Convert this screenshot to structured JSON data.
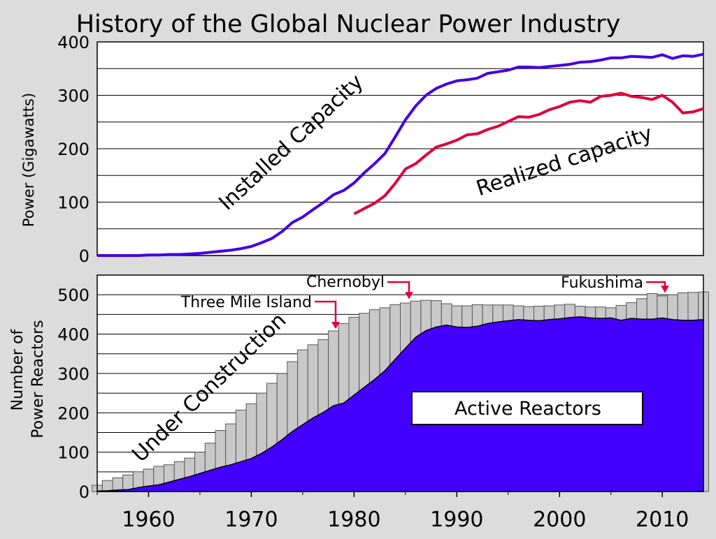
{
  "title": "History of the Global Nuclear Power Industry",
  "chart_data": [
    {
      "type": "line",
      "ylabel": "Power (Gigawatts)",
      "ylim": [
        0,
        400
      ],
      "yticks": [
        0,
        100,
        200,
        300,
        400
      ],
      "xlim": [
        1955,
        2014
      ],
      "grid": true,
      "series": [
        {
          "name": "Installed Capacity",
          "color": "#4400e0",
          "points": [
            [
              1955,
              0
            ],
            [
              1956,
              0
            ],
            [
              1957,
              0
            ],
            [
              1958,
              0
            ],
            [
              1959,
              0
            ],
            [
              1960,
              1
            ],
            [
              1961,
              1
            ],
            [
              1962,
              2
            ],
            [
              1963,
              2
            ],
            [
              1964,
              3
            ],
            [
              1965,
              4
            ],
            [
              1966,
              6
            ],
            [
              1967,
              8
            ],
            [
              1968,
              10
            ],
            [
              1969,
              13
            ],
            [
              1970,
              17
            ],
            [
              1971,
              24
            ],
            [
              1972,
              32
            ],
            [
              1973,
              45
            ],
            [
              1974,
              62
            ],
            [
              1975,
              72
            ],
            [
              1976,
              86
            ],
            [
              1977,
              99
            ],
            [
              1978,
              114
            ],
            [
              1979,
              122
            ],
            [
              1980,
              136
            ],
            [
              1981,
              155
            ],
            [
              1982,
              172
            ],
            [
              1983,
              191
            ],
            [
              1984,
              222
            ],
            [
              1985,
              254
            ],
            [
              1986,
              280
            ],
            [
              1987,
              300
            ],
            [
              1988,
              313
            ],
            [
              1989,
              321
            ],
            [
              1990,
              327
            ],
            [
              1991,
              329
            ],
            [
              1992,
              332
            ],
            [
              1993,
              341
            ],
            [
              1994,
              344
            ],
            [
              1995,
              347
            ],
            [
              1996,
              353
            ],
            [
              1997,
              353
            ],
            [
              1998,
              352
            ],
            [
              1999,
              354
            ],
            [
              2000,
              356
            ],
            [
              2001,
              358
            ],
            [
              2002,
              362
            ],
            [
              2003,
              363
            ],
            [
              2004,
              366
            ],
            [
              2005,
              370
            ],
            [
              2006,
              370
            ],
            [
              2007,
              373
            ],
            [
              2008,
              372
            ],
            [
              2009,
              371
            ],
            [
              2010,
              376
            ],
            [
              2011,
              369
            ],
            [
              2012,
              374
            ],
            [
              2013,
              373
            ],
            [
              2014,
              377
            ]
          ]
        },
        {
          "name": "Realized capacity",
          "color": "#e0003a",
          "points": [
            [
              1980,
              78
            ],
            [
              1981,
              88
            ],
            [
              1982,
              98
            ],
            [
              1983,
              112
            ],
            [
              1984,
              135
            ],
            [
              1985,
              162
            ],
            [
              1986,
              172
            ],
            [
              1987,
              188
            ],
            [
              1988,
              203
            ],
            [
              1989,
              209
            ],
            [
              1990,
              216
            ],
            [
              1991,
              226
            ],
            [
              1992,
              228
            ],
            [
              1993,
              236
            ],
            [
              1994,
              242
            ],
            [
              1995,
              251
            ],
            [
              1996,
              260
            ],
            [
              1997,
              259
            ],
            [
              1998,
              264
            ],
            [
              1999,
              273
            ],
            [
              2000,
              279
            ],
            [
              2001,
              287
            ],
            [
              2002,
              290
            ],
            [
              2003,
              287
            ],
            [
              2004,
              298
            ],
            [
              2005,
              300
            ],
            [
              2006,
              304
            ],
            [
              2007,
              298
            ],
            [
              2008,
              296
            ],
            [
              2009,
              292
            ],
            [
              2010,
              300
            ],
            [
              2011,
              287
            ],
            [
              2012,
              267
            ],
            [
              2013,
              269
            ],
            [
              2014,
              275
            ]
          ]
        }
      ]
    },
    {
      "type": "area",
      "ylabel": "Number of Power Reactors",
      "ylim": [
        0,
        550
      ],
      "yticks": [
        0,
        100,
        200,
        300,
        400,
        500
      ],
      "xlim": [
        1955,
        2014
      ],
      "xticks": [
        1960,
        1970,
        1980,
        1990,
        2000,
        2010
      ],
      "grid": true,
      "years": [
        1955,
        1956,
        1957,
        1958,
        1959,
        1960,
        1961,
        1962,
        1963,
        1964,
        1965,
        1966,
        1967,
        1968,
        1969,
        1970,
        1971,
        1972,
        1973,
        1974,
        1975,
        1976,
        1977,
        1978,
        1979,
        1980,
        1981,
        1982,
        1983,
        1984,
        1985,
        1986,
        1987,
        1988,
        1989,
        1990,
        1991,
        1992,
        1993,
        1994,
        1995,
        1996,
        1997,
        1998,
        1999,
        2000,
        2001,
        2002,
        2003,
        2004,
        2005,
        2006,
        2007,
        2008,
        2009,
        2010,
        2011,
        2012,
        2013,
        2014
      ],
      "series": [
        {
          "name": "Under Construction",
          "color": "#c8c8c8",
          "totals": [
            16,
            28,
            35,
            42,
            50,
            57,
            64,
            68,
            76,
            85,
            100,
            123,
            155,
            172,
            207,
            223,
            250,
            275,
            300,
            330,
            360,
            373,
            386,
            408,
            427,
            443,
            453,
            462,
            467,
            475,
            479,
            484,
            486,
            485,
            477,
            472,
            472,
            475,
            474,
            474,
            474,
            472,
            470,
            471,
            472,
            474,
            476,
            471,
            469,
            469,
            467,
            473,
            480,
            490,
            503,
            497,
            500,
            505,
            506,
            507
          ]
        },
        {
          "name": "Active Reactors",
          "color": "#4400ff",
          "values": [
            1,
            2,
            4,
            5,
            10,
            14,
            17,
            24,
            31,
            38,
            46,
            54,
            62,
            68,
            76,
            84,
            97,
            113,
            132,
            153,
            170,
            187,
            201,
            218,
            225,
            245,
            265,
            285,
            307,
            336,
            364,
            392,
            409,
            418,
            423,
            418,
            417,
            420,
            427,
            431,
            434,
            437,
            435,
            434,
            437,
            439,
            442,
            444,
            441,
            440,
            441,
            435,
            440,
            438,
            438,
            441,
            437,
            435,
            435,
            437
          ]
        }
      ],
      "annotations": [
        "Three Mile Island",
        "Chernobyl",
        "Fukushima"
      ],
      "annotation_years": [
        1978,
        1986,
        2011
      ]
    }
  ]
}
